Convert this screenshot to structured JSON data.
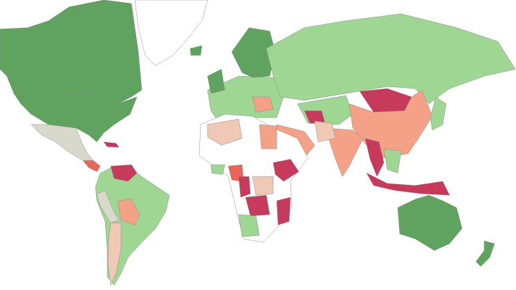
{
  "map": {
    "palette": [
      "#5fa35f",
      "#9fd693",
      "#f4a187",
      "#c73a5c",
      "#d8d8cb",
      "#ffffff",
      "#f0c8b6",
      "#e9655a"
    ]
  }
}
